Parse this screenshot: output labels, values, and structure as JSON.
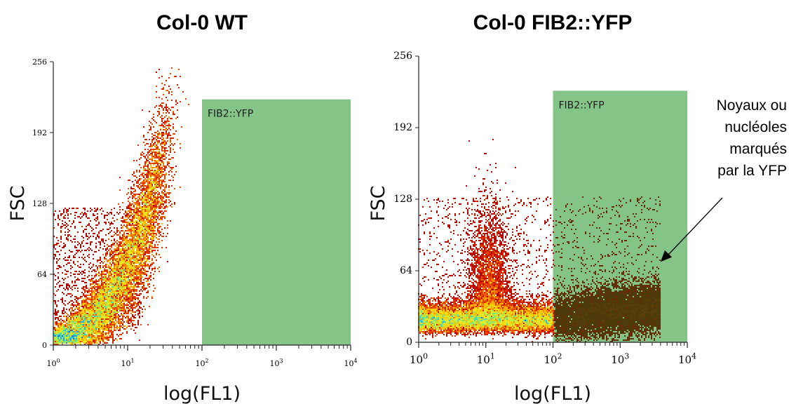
{
  "chart_data": [
    {
      "type": "scatter",
      "title": "Col-0 WT",
      "xlabel": "log(FL1)",
      "ylabel": "FSC",
      "x_scale": "log",
      "xlim": [
        1,
        10000
      ],
      "ylim": [
        0,
        256
      ],
      "x_ticks": [
        {
          "value": 1,
          "base": "10",
          "exp": "0"
        },
        {
          "value": 10,
          "base": "10",
          "exp": "1"
        },
        {
          "value": 100,
          "base": "10",
          "exp": "2"
        },
        {
          "value": 1000,
          "base": "10",
          "exp": "3"
        },
        {
          "value": 10000,
          "base": "10",
          "exp": "4"
        }
      ],
      "y_ticks": [
        {
          "value": 0,
          "label": "0"
        },
        {
          "value": 64,
          "label": "64"
        },
        {
          "value": 128,
          "label": "128"
        },
        {
          "value": 192,
          "label": "192"
        },
        {
          "value": 256,
          "label": "256"
        }
      ],
      "gate": {
        "label": "FIB2::YFP",
        "x_range": [
          100,
          10000
        ],
        "y_range": [
          0,
          222
        ],
        "color": "#85c487"
      },
      "density_note": "dense population rising from FL1 1-30, FSC 0-180; no events in gate",
      "series": [
        {
          "x": [
            1.5,
            2,
            3,
            5,
            8,
            10,
            12,
            15,
            20,
            25
          ],
          "y": [
            5,
            9,
            16,
            28,
            45,
            62,
            88,
            118,
            150,
            165
          ]
        }
      ]
    },
    {
      "type": "scatter",
      "title": "Col-0 FIB2::YFP",
      "xlabel": "log(FL1)",
      "ylabel": "FSC",
      "x_scale": "log",
      "xlim": [
        1,
        10000
      ],
      "ylim": [
        0,
        256
      ],
      "x_ticks": [
        {
          "value": 1,
          "base": "10",
          "exp": "0"
        },
        {
          "value": 10,
          "base": "10",
          "exp": "1"
        },
        {
          "value": 100,
          "base": "10",
          "exp": "2"
        },
        {
          "value": 1000,
          "base": "10",
          "exp": "3"
        },
        {
          "value": 10000,
          "base": "10",
          "exp": "4"
        }
      ],
      "y_ticks": [
        {
          "value": 0,
          "label": "0"
        },
        {
          "value": 64,
          "label": "64"
        },
        {
          "value": 128,
          "label": "128"
        },
        {
          "value": 192,
          "label": "192"
        },
        {
          "value": 256,
          "label": "256"
        }
      ],
      "gate": {
        "label": "FIB2::YFP",
        "x_range": [
          100,
          10000
        ],
        "y_range": [
          0,
          225
        ],
        "color": "#85c487"
      },
      "annotation": {
        "lines": [
          "Noyaux ou",
          "nucléoles",
          "marqués",
          "par la YFP"
        ],
        "arrow_target": {
          "x": 4000,
          "y": 72
        }
      },
      "density_note": "population at FL1 1-100, FSC 5-40 with a stem near FL1 10 up to FSC 110; YFP-positive cluster at FL1 100-5000, FSC 10-60 inside gate",
      "series": [
        {
          "x": [
            1.5,
            3,
            10,
            30,
            100,
            300,
            1000,
            3000
          ],
          "y": [
            15,
            14,
            40,
            15,
            14,
            22,
            28,
            35
          ]
        }
      ]
    }
  ]
}
